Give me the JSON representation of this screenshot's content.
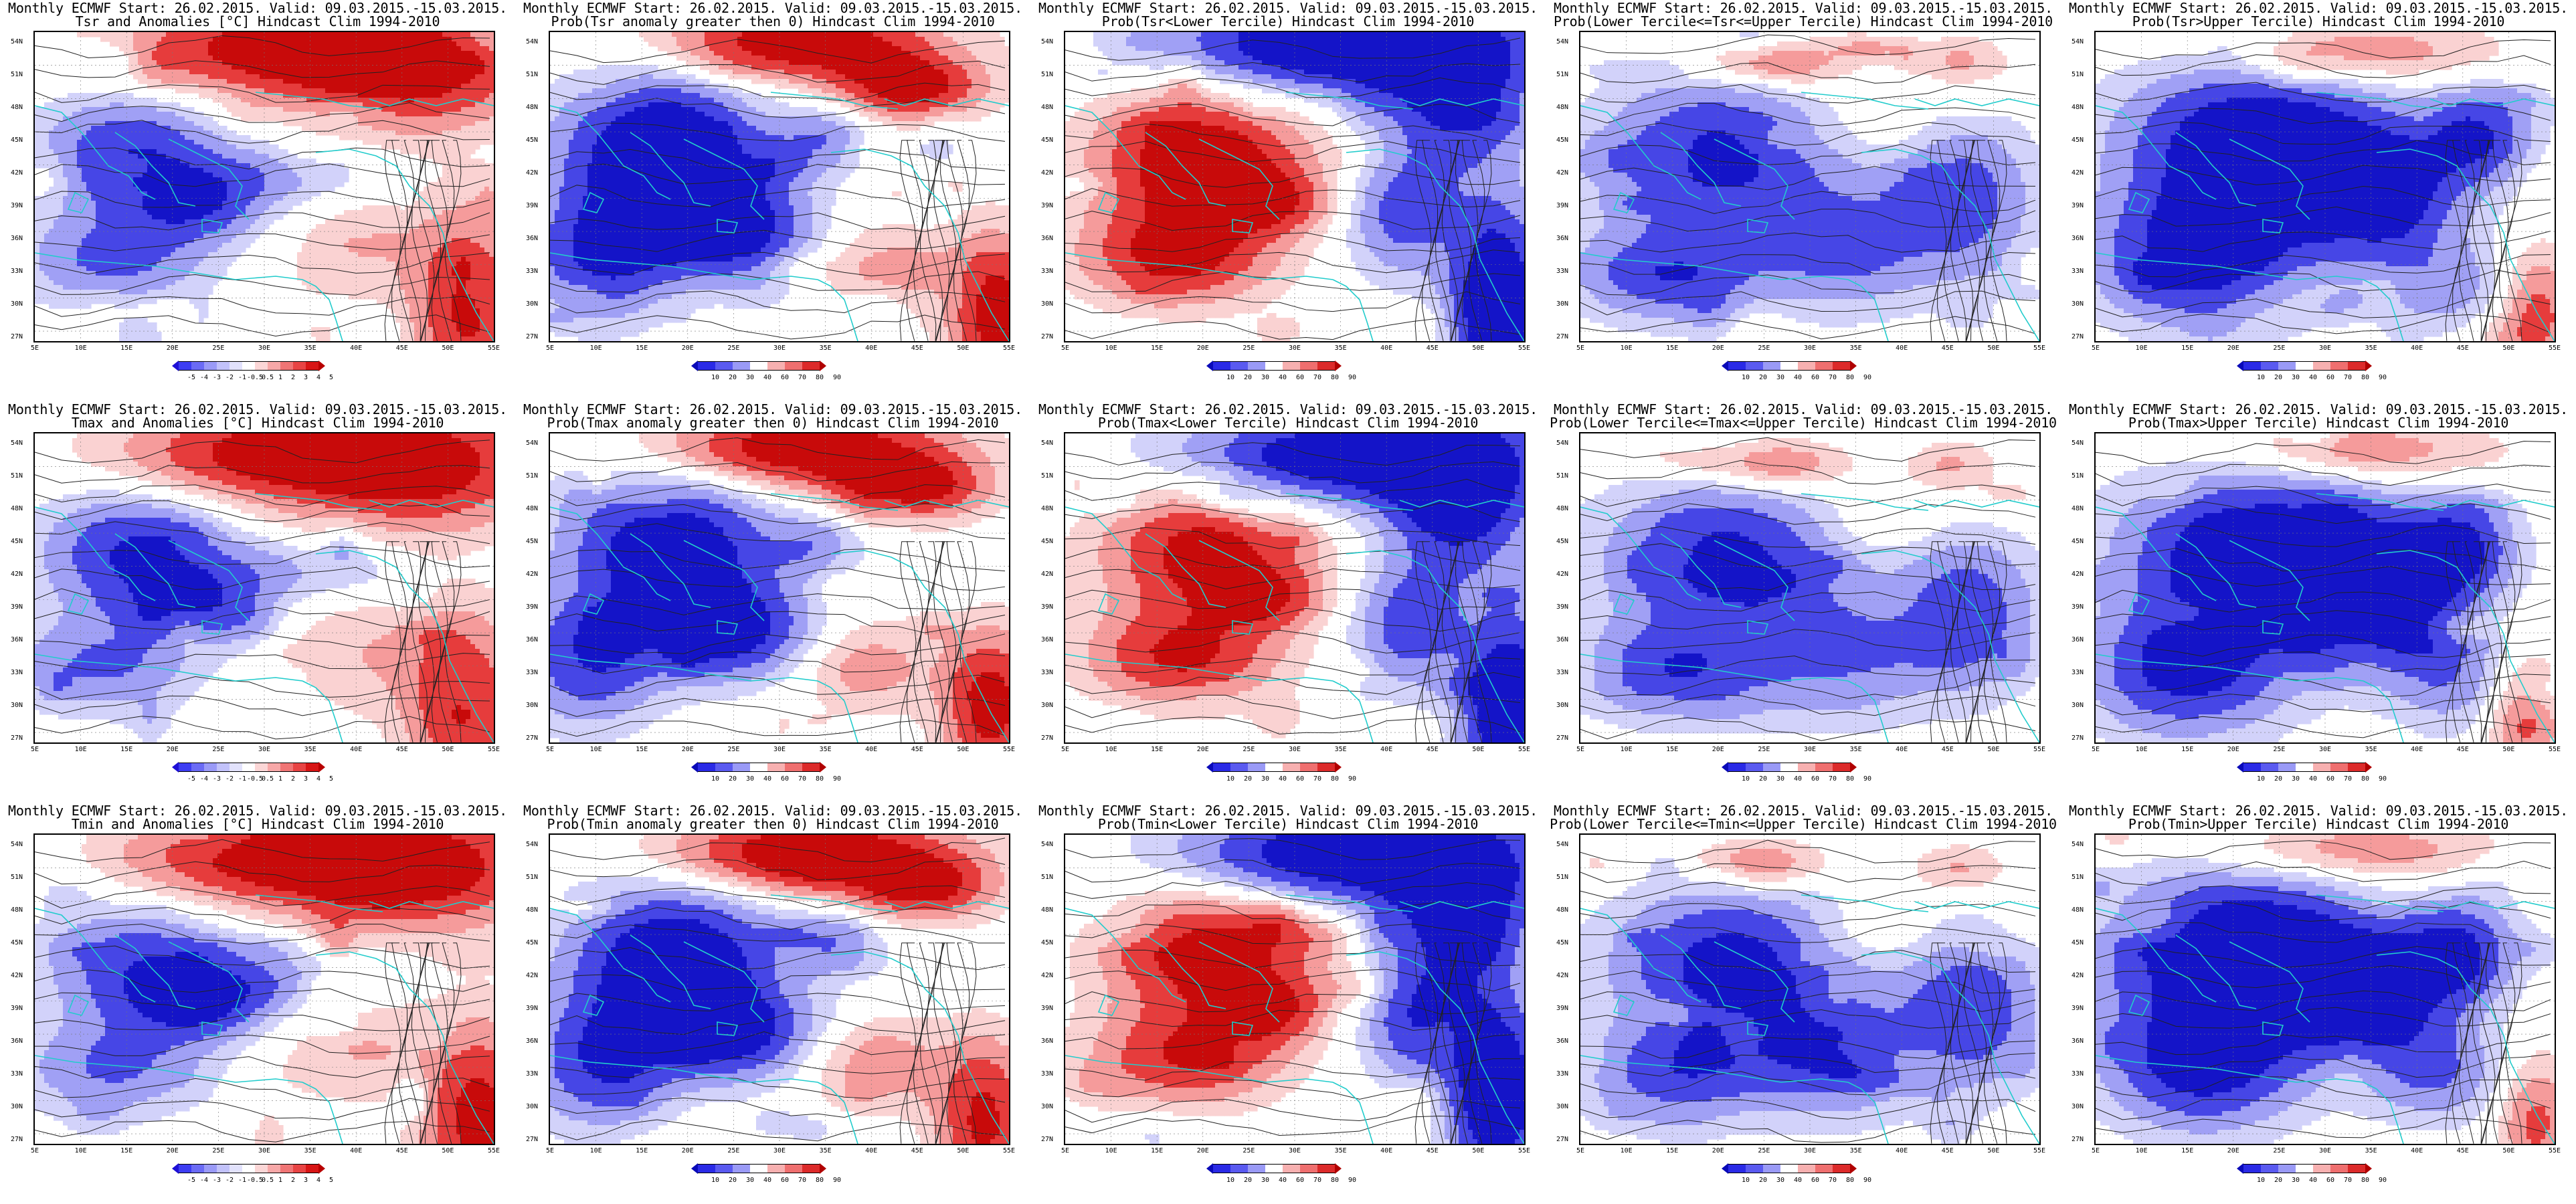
{
  "rows": [
    {
      "panels": [
        {
          "title1": "Monthly ECMWF Start: 26.02.2015. Valid: 09.03.2015.-15.03.2015.",
          "title2": "Tsr and Anomalies [°C] Hindcast Clim 1994-2010",
          "scale": "anom",
          "scheme": "tsr_anom"
        },
        {
          "title1": "Monthly ECMWF Start: 26.02.2015. Valid: 09.03.2015.-15.03.2015.",
          "title2": "Prob(Tsr anomaly greater then 0) Hindcast Clim 1994-2010",
          "scale": "prob",
          "scheme": "cold_north_warm"
        },
        {
          "title1": "Monthly ECMWF Start: 26.02.2015. Valid: 09.03.2015.-15.03.2015.",
          "title2": "Prob(Tsr<Lower Tercile) Hindcast Clim 1994-2010",
          "scale": "prob",
          "scheme": "lower_tercile"
        },
        {
          "title1": "Monthly ECMWF Start: 26.02.2015. Valid: 09.03.2015.-15.03.2015.",
          "title2": "Prob(Lower Tercile<=Tsr<=Upper Tercile) Hindcast Clim 1994-2010",
          "scale": "prob",
          "scheme": "middle"
        },
        {
          "title1": "Monthly ECMWF Start: 26.02.2015. Valid: 09.03.2015.-15.03.2015.",
          "title2": "Prob(Tsr>Upper Tercile) Hindcast Clim 1994-2010",
          "scale": "prob",
          "scheme": "upper"
        }
      ]
    },
    {
      "panels": [
        {
          "title1": "Monthly ECMWF Start: 26.02.2015. Valid: 09.03.2015.-15.03.2015.",
          "title2": "Tmax and Anomalies [°C] Hindcast Clim 1994-2010",
          "scale": "anom",
          "scheme": "tsr_anom"
        },
        {
          "title1": "Monthly ECMWF Start: 26.02.2015. Valid: 09.03.2015.-15.03.2015.",
          "title2": "Prob(Tmax anomaly greater then 0) Hindcast Clim 1994-2010",
          "scale": "prob",
          "scheme": "cold_north_warm"
        },
        {
          "title1": "Monthly ECMWF Start: 26.02.2015. Valid: 09.03.2015.-15.03.2015.",
          "title2": "Prob(Tmax<Lower Tercile) Hindcast Clim 1994-2010",
          "scale": "prob",
          "scheme": "lower_tercile"
        },
        {
          "title1": "Monthly ECMWF Start: 26.02.2015. Valid: 09.03.2015.-15.03.2015.",
          "title2": "Prob(Lower Tercile<=Tmax<=Upper Tercile) Hindcast Clim 1994-2010",
          "scale": "prob",
          "scheme": "middle"
        },
        {
          "title1": "Monthly ECMWF Start: 26.02.2015. Valid: 09.03.2015.-15.03.2015.",
          "title2": "Prob(Tmax>Upper Tercile) Hindcast Clim 1994-2010",
          "scale": "prob",
          "scheme": "upper"
        }
      ]
    },
    {
      "panels": [
        {
          "title1": "Monthly ECMWF Start: 26.02.2015. Valid: 09.03.2015.-15.03.2015.",
          "title2": "Tmin and Anomalies [°C] Hindcast Clim 1994-2010",
          "scale": "anom",
          "scheme": "tsr_anom"
        },
        {
          "title1": "Monthly ECMWF Start: 26.02.2015. Valid: 09.03.2015.-15.03.2015.",
          "title2": "Prob(Tmin anomaly greater then 0) Hindcast Clim 1994-2010",
          "scale": "prob",
          "scheme": "cold_north_warm"
        },
        {
          "title1": "Monthly ECMWF Start: 26.02.2015. Valid: 09.03.2015.-15.03.2015.",
          "title2": "Prob(Tmin<Lower Tercile) Hindcast Clim 1994-2010",
          "scale": "prob",
          "scheme": "lower_tercile"
        },
        {
          "title1": "Monthly ECMWF Start: 26.02.2015. Valid: 09.03.2015.-15.03.2015.",
          "title2": "Prob(Lower Tercile<=Tmin<=Upper Tercile) Hindcast Clim 1994-2010",
          "scale": "prob",
          "scheme": "middle"
        },
        {
          "title1": "Monthly ECMWF Start: 26.02.2015. Valid: 09.03.2015.-15.03.2015.",
          "title2": "Prob(Tmin>Upper Tercile) Hindcast Clim 1994-2010",
          "scale": "prob",
          "scheme": "upper"
        }
      ]
    }
  ],
  "lat_labels": [
    "54N",
    "51N",
    "48N",
    "45N",
    "42N",
    "39N",
    "36N",
    "33N",
    "30N",
    "27N"
  ],
  "lon_labels": [
    "5E",
    "10E",
    "15E",
    "20E",
    "25E",
    "30E",
    "35E",
    "40E",
    "45E",
    "50E",
    "55E"
  ],
  "scales": {
    "anom": {
      "ticks": [
        "-5",
        "-4",
        "-3",
        "-2",
        "-1",
        "-0.5",
        "0.5",
        "1",
        "2",
        "3",
        "4",
        "5"
      ],
      "colors": [
        "#1e10d6",
        "#3d3df2",
        "#6b6bf5",
        "#9a9af7",
        "#c2c2fa",
        "#e2e2fc",
        "#ffffff",
        "#fbd6d6",
        "#f7a8a8",
        "#f07575",
        "#e84444",
        "#d81515",
        "#b80000"
      ]
    },
    "prob": {
      "ticks": [
        "10",
        "20",
        "30",
        "40",
        "60",
        "70",
        "80",
        "90"
      ],
      "colors": [
        "#0a0ab8",
        "#2a2ae6",
        "#5a5af0",
        "#9a9af6",
        "#ffffff",
        "#f7b0b0",
        "#ef6f6f",
        "#dc2a2a",
        "#b00000"
      ]
    }
  },
  "palette": {
    "deep_blue": "#1414c8",
    "blue": "#4646e6",
    "light_blue": "#a0a0f5",
    "pale_blue": "#d2d2fa",
    "pale_red": "#fad2d2",
    "light_red": "#f59b9b",
    "red": "#e63c3c",
    "deep_red": "#c80a0a",
    "coast": "#22cccc",
    "contour": "#222222"
  }
}
